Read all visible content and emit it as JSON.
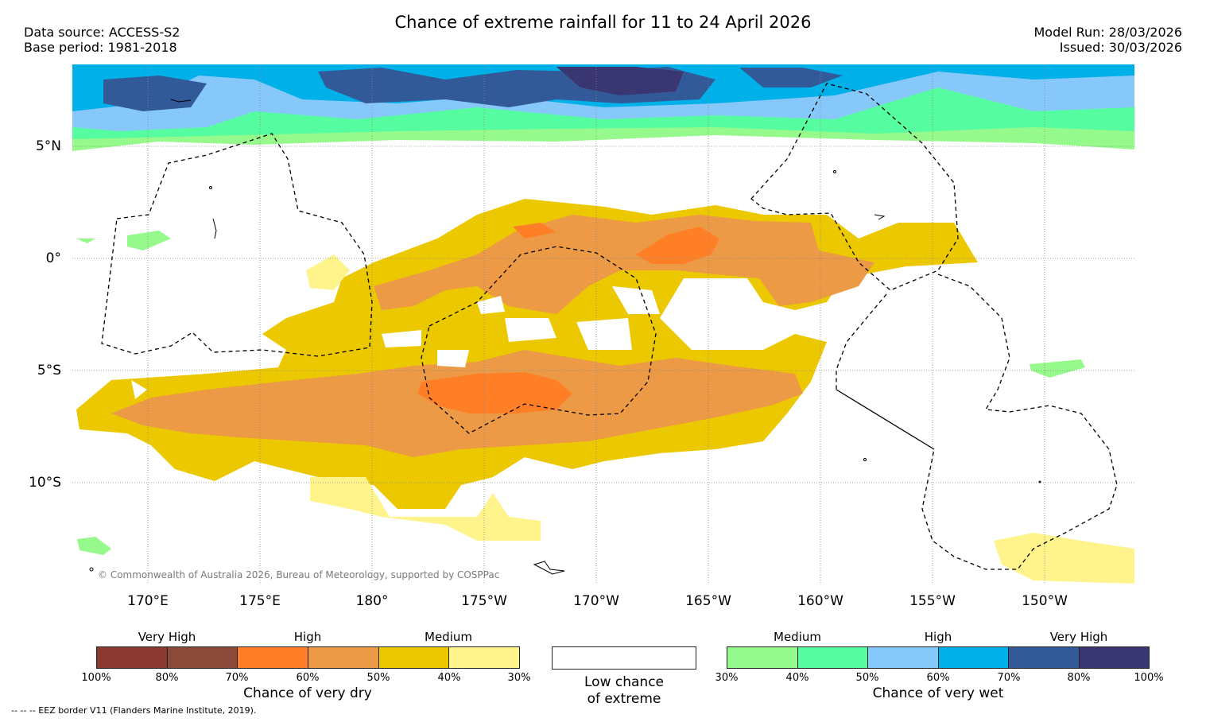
{
  "header": {
    "title": "Chance of extreme rainfall for 11 to 24 April 2026",
    "data_source": "Data source: ACCESS-S2",
    "base_period": "Base period: 1981-2018",
    "model_run": "Model Run: 28/03/2026",
    "issued": "Issued: 30/03/2026"
  },
  "map": {
    "lat_labels": [
      "5°N",
      "0°",
      "5°S",
      "10°S"
    ],
    "lon_labels": [
      "170°E",
      "175°E",
      "180°",
      "175°W",
      "170°W",
      "165°W",
      "160°W",
      "155°W",
      "150°W"
    ],
    "copyright": "© Commonwealth of Australia 2026, Bureau of Meteorology, supported by COSPPac",
    "colors": {
      "dry_very_high_1": "#8b3a32",
      "dry_very_high_2": "#8b4a3a",
      "dry_high_1": "#ff7f27",
      "dry_high_2": "#ec9a45",
      "dry_medium_1": "#ecc800",
      "dry_medium_2": "#fff48c",
      "wet_medium_1": "#96f98c",
      "wet_medium_2": "#55fca0",
      "wet_high_1": "#87c8fa",
      "wet_high_2": "#00b0e8",
      "wet_very_high_1": "#325a98",
      "wet_very_high_2": "#3a3672"
    }
  },
  "legend": {
    "dry": {
      "categories": [
        "Very High",
        "High",
        "Medium"
      ],
      "ticks": [
        "100%",
        "80%",
        "70%",
        "60%",
        "50%",
        "40%",
        "30%"
      ],
      "label": "Chance of very dry"
    },
    "low": {
      "line1": "Low chance",
      "line2": "of extreme"
    },
    "wet": {
      "categories": [
        "Medium",
        "High",
        "Very High"
      ],
      "ticks": [
        "30%",
        "40%",
        "50%",
        "60%",
        "70%",
        "80%",
        "100%"
      ],
      "label": "Chance of very wet"
    },
    "eez_note": "-- -- -- EEZ border V11 (Flanders Marine Institute, 2019)."
  }
}
